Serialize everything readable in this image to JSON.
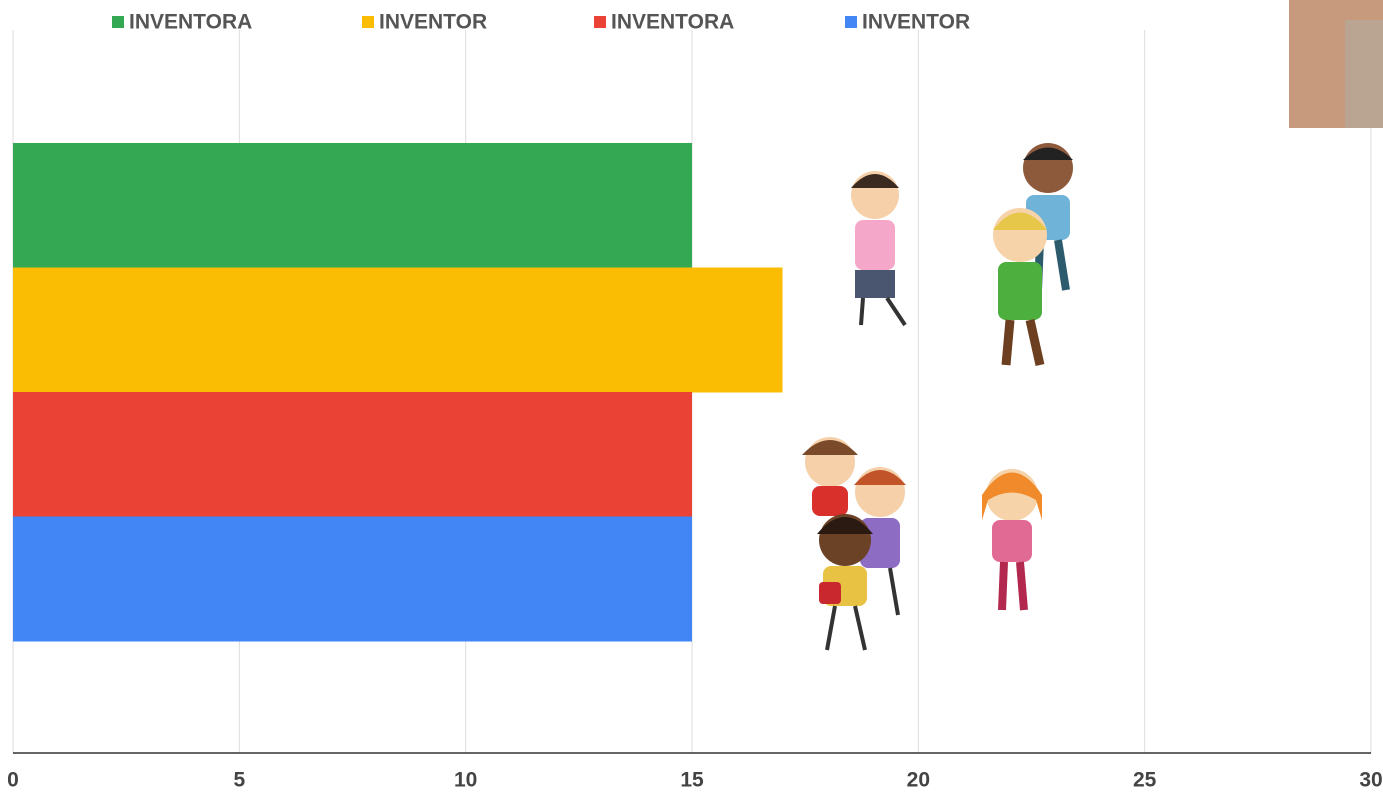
{
  "chart_data": {
    "type": "bar",
    "orientation": "horizontal",
    "series": [
      {
        "name": "INVENTORA",
        "color": "#34a853",
        "values": [
          15
        ]
      },
      {
        "name": "INVENTOR",
        "color": "#fbbc04",
        "values": [
          17
        ]
      },
      {
        "name": "INVENTORA",
        "color": "#ea4335",
        "values": [
          15
        ]
      },
      {
        "name": "INVENTOR",
        "color": "#4285f4",
        "values": [
          15
        ]
      }
    ],
    "xlim": [
      0,
      30
    ],
    "xticks": [
      0,
      5,
      10,
      15,
      20,
      25,
      30
    ],
    "grid": true,
    "legend": "top"
  }
}
